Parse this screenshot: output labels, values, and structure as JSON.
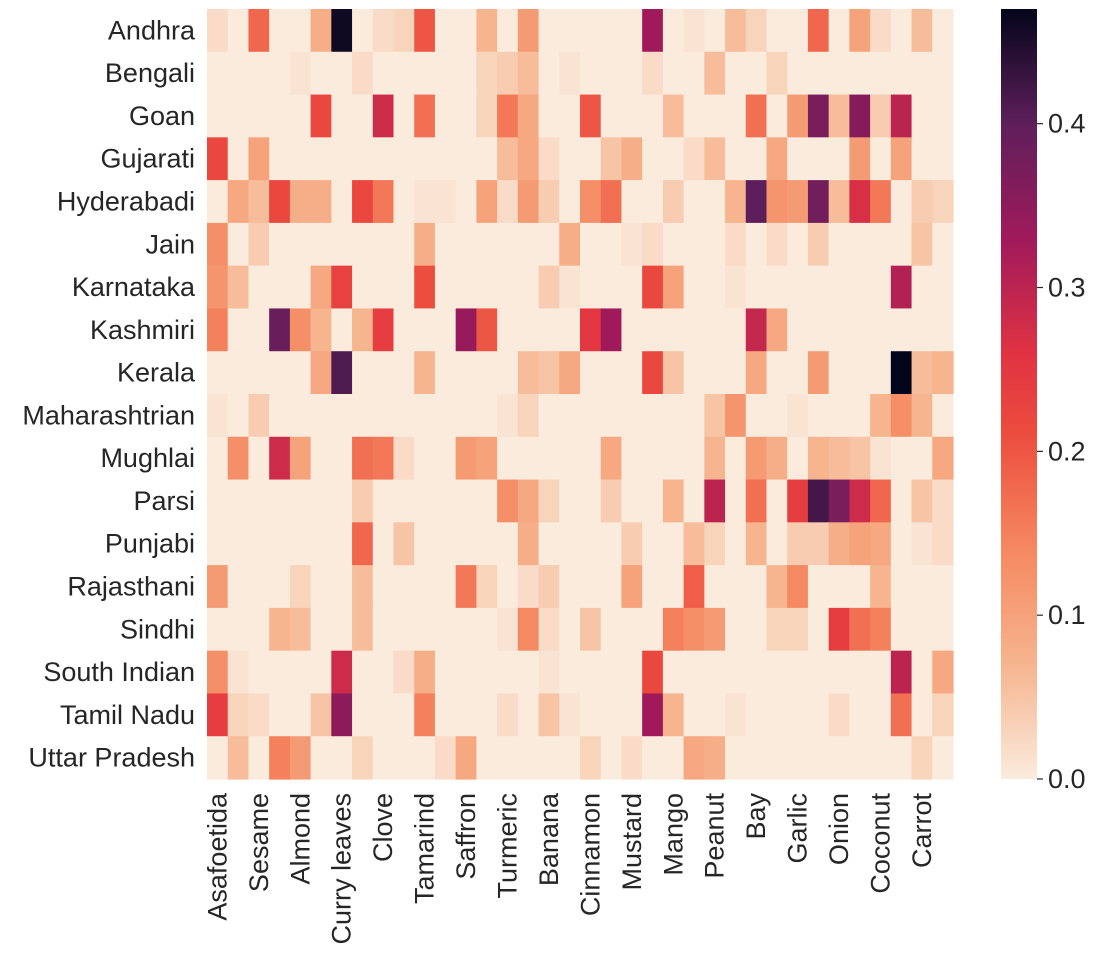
{
  "chart_data": {
    "type": "heatmap",
    "title": "",
    "xlabel": "",
    "ylabel": "",
    "rows": [
      "Andhra",
      "Bengali",
      "Goan",
      "Gujarati",
      "Hyderabadi",
      "Jain",
      "Karnataka",
      "Kashmiri",
      "Kerala",
      "Maharashtrian",
      "Mughlai",
      "Parsi",
      "Punjabi",
      "Rajasthani",
      "Sindhi",
      "South Indian",
      "Tamil Nadu",
      "Uttar Pradesh"
    ],
    "x_tick_labels": [
      "Asafoetida",
      "Sesame",
      "Almond",
      "Curry leaves",
      "Clove",
      "Tamarind",
      "Saffron",
      "Turmeric",
      "Banana",
      "Cinnamon",
      "Mustard",
      "Mango",
      "Peanut",
      "Bay",
      "Garlic",
      "Onion",
      "Coconut",
      "Carrot"
    ],
    "n_columns": 36,
    "values": [
      [
        0.02,
        0.0,
        0.18,
        0.0,
        0.0,
        0.08,
        0.46,
        0.0,
        0.02,
        0.03,
        0.2,
        0.0,
        0.0,
        0.07,
        0.0,
        0.11,
        0.0,
        0.0,
        0.0,
        0.0,
        0.0,
        0.33,
        0.0,
        0.01,
        0.0,
        0.06,
        0.03,
        0.0,
        0.0,
        0.18,
        0.0,
        0.1,
        0.02,
        0.0,
        0.06,
        0.0
      ],
      [
        0.0,
        0.0,
        0.0,
        0.0,
        0.01,
        0.0,
        0.0,
        0.02,
        0.0,
        0.0,
        0.0,
        0.0,
        0.0,
        0.03,
        0.04,
        0.06,
        0.0,
        0.01,
        0.0,
        0.0,
        0.0,
        0.02,
        0.0,
        0.0,
        0.06,
        0.0,
        0.0,
        0.03,
        0.0,
        0.0,
        0.0,
        0.0,
        0.0,
        0.0,
        0.0,
        0.0
      ],
      [
        0.0,
        0.0,
        0.0,
        0.0,
        0.0,
        0.22,
        0.0,
        0.0,
        0.28,
        0.0,
        0.17,
        0.0,
        0.0,
        0.03,
        0.16,
        0.09,
        0.0,
        0.0,
        0.2,
        0.0,
        0.0,
        0.0,
        0.06,
        0.0,
        0.0,
        0.0,
        0.17,
        0.0,
        0.11,
        0.37,
        0.06,
        0.36,
        0.04,
        0.3,
        0.0,
        0.0
      ],
      [
        0.22,
        0.0,
        0.1,
        0.0,
        0.0,
        0.0,
        0.0,
        0.0,
        0.0,
        0.0,
        0.0,
        0.0,
        0.0,
        0.0,
        0.06,
        0.09,
        0.02,
        0.0,
        0.0,
        0.05,
        0.08,
        0.0,
        0.0,
        0.02,
        0.06,
        0.0,
        0.0,
        0.09,
        0.0,
        0.0,
        0.0,
        0.11,
        0.0,
        0.1,
        0.0,
        0.0
      ],
      [
        0.0,
        0.09,
        0.06,
        0.22,
        0.08,
        0.08,
        0.0,
        0.22,
        0.16,
        0.0,
        0.01,
        0.01,
        0.0,
        0.1,
        0.02,
        0.11,
        0.04,
        0.0,
        0.13,
        0.17,
        0.0,
        0.0,
        0.04,
        0.0,
        0.0,
        0.07,
        0.4,
        0.12,
        0.11,
        0.38,
        0.06,
        0.27,
        0.16,
        0.0,
        0.04,
        0.03
      ],
      [
        0.13,
        0.0,
        0.04,
        0.0,
        0.0,
        0.0,
        0.0,
        0.0,
        0.0,
        0.0,
        0.08,
        0.0,
        0.0,
        0.0,
        0.0,
        0.0,
        0.0,
        0.08,
        0.0,
        0.0,
        0.01,
        0.02,
        0.0,
        0.0,
        0.0,
        0.02,
        0.0,
        0.02,
        0.0,
        0.04,
        0.0,
        0.0,
        0.0,
        0.0,
        0.05,
        0.0
      ],
      [
        0.12,
        0.06,
        0.0,
        0.0,
        0.0,
        0.09,
        0.23,
        0.0,
        0.0,
        0.0,
        0.21,
        0.0,
        0.0,
        0.0,
        0.0,
        0.0,
        0.04,
        0.01,
        0.0,
        0.0,
        0.0,
        0.22,
        0.1,
        0.0,
        0.0,
        0.01,
        0.0,
        0.0,
        0.0,
        0.0,
        0.0,
        0.0,
        0.0,
        0.31,
        0.0,
        0.0
      ],
      [
        0.15,
        0.0,
        0.0,
        0.39,
        0.13,
        0.07,
        0.0,
        0.07,
        0.24,
        0.0,
        0.0,
        0.0,
        0.34,
        0.2,
        0.0,
        0.0,
        0.0,
        0.0,
        0.25,
        0.33,
        0.0,
        0.0,
        0.0,
        0.0,
        0.0,
        0.0,
        0.29,
        0.09,
        0.0,
        0.0,
        0.0,
        0.0,
        0.0,
        0.0,
        0.0,
        0.0
      ],
      [
        0.0,
        0.0,
        0.0,
        0.0,
        0.0,
        0.09,
        0.41,
        0.0,
        0.0,
        0.0,
        0.07,
        0.0,
        0.0,
        0.0,
        0.0,
        0.06,
        0.05,
        0.09,
        0.0,
        0.0,
        0.0,
        0.22,
        0.05,
        0.0,
        0.0,
        0.0,
        0.09,
        0.0,
        0.0,
        0.11,
        0.0,
        0.0,
        0.0,
        0.47,
        0.06,
        0.07
      ],
      [
        0.01,
        0.0,
        0.04,
        0.0,
        0.0,
        0.0,
        0.0,
        0.0,
        0.0,
        0.0,
        0.0,
        0.0,
        0.0,
        0.0,
        0.01,
        0.03,
        0.0,
        0.0,
        0.0,
        0.0,
        0.0,
        0.0,
        0.0,
        0.0,
        0.05,
        0.12,
        0.0,
        0.0,
        0.01,
        0.0,
        0.0,
        0.0,
        0.07,
        0.13,
        0.07,
        0.0
      ],
      [
        0.0,
        0.13,
        0.0,
        0.28,
        0.1,
        0.0,
        0.0,
        0.17,
        0.16,
        0.02,
        0.0,
        0.0,
        0.11,
        0.1,
        0.0,
        0.0,
        0.0,
        0.0,
        0.0,
        0.09,
        0.0,
        0.0,
        0.0,
        0.0,
        0.07,
        0.0,
        0.11,
        0.08,
        0.0,
        0.07,
        0.06,
        0.05,
        0.01,
        0.0,
        0.0,
        0.09
      ],
      [
        0.0,
        0.0,
        0.0,
        0.0,
        0.0,
        0.0,
        0.0,
        0.04,
        0.0,
        0.0,
        0.0,
        0.0,
        0.0,
        0.0,
        0.13,
        0.09,
        0.03,
        0.0,
        0.0,
        0.04,
        0.0,
        0.0,
        0.07,
        0.0,
        0.3,
        0.0,
        0.17,
        0.0,
        0.24,
        0.42,
        0.37,
        0.28,
        0.18,
        0.0,
        0.05,
        0.02
      ],
      [
        0.0,
        0.0,
        0.0,
        0.0,
        0.0,
        0.0,
        0.0,
        0.18,
        0.0,
        0.05,
        0.0,
        0.0,
        0.0,
        0.0,
        0.0,
        0.08,
        0.0,
        0.0,
        0.0,
        0.0,
        0.04,
        0.0,
        0.0,
        0.06,
        0.03,
        0.0,
        0.07,
        0.0,
        0.04,
        0.04,
        0.08,
        0.1,
        0.09,
        0.0,
        0.01,
        0.02
      ],
      [
        0.11,
        0.0,
        0.0,
        0.0,
        0.03,
        0.0,
        0.0,
        0.06,
        0.0,
        0.0,
        0.0,
        0.0,
        0.16,
        0.03,
        0.0,
        0.02,
        0.04,
        0.0,
        0.0,
        0.0,
        0.1,
        0.0,
        0.0,
        0.19,
        0.0,
        0.0,
        0.0,
        0.07,
        0.14,
        0.0,
        0.0,
        0.0,
        0.07,
        0.0,
        0.0,
        0.0
      ],
      [
        0.0,
        0.0,
        0.0,
        0.07,
        0.06,
        0.0,
        0.0,
        0.06,
        0.0,
        0.0,
        0.0,
        0.0,
        0.0,
        0.0,
        0.01,
        0.14,
        0.02,
        0.0,
        0.05,
        0.0,
        0.0,
        0.0,
        0.15,
        0.13,
        0.11,
        0.0,
        0.0,
        0.03,
        0.03,
        0.0,
        0.24,
        0.17,
        0.15,
        0.0,
        0.0,
        0.0
      ],
      [
        0.13,
        0.01,
        0.0,
        0.0,
        0.0,
        0.0,
        0.28,
        0.0,
        0.0,
        0.02,
        0.08,
        0.0,
        0.0,
        0.0,
        0.0,
        0.0,
        0.01,
        0.0,
        0.0,
        0.0,
        0.0,
        0.22,
        0.0,
        0.0,
        0.0,
        0.0,
        0.0,
        0.0,
        0.0,
        0.0,
        0.0,
        0.0,
        0.0,
        0.3,
        0.0,
        0.09
      ],
      [
        0.24,
        0.03,
        0.02,
        0.0,
        0.0,
        0.05,
        0.35,
        0.0,
        0.0,
        0.0,
        0.15,
        0.0,
        0.0,
        0.0,
        0.02,
        0.0,
        0.05,
        0.01,
        0.0,
        0.0,
        0.0,
        0.33,
        0.07,
        0.0,
        0.0,
        0.01,
        0.0,
        0.0,
        0.0,
        0.0,
        0.02,
        0.0,
        0.0,
        0.17,
        0.0,
        0.03
      ],
      [
        0.0,
        0.06,
        0.0,
        0.15,
        0.11,
        0.0,
        0.0,
        0.03,
        0.0,
        0.0,
        0.0,
        0.02,
        0.09,
        0.0,
        0.0,
        0.0,
        0.0,
        0.0,
        0.03,
        0.0,
        0.02,
        0.0,
        0.0,
        0.09,
        0.08,
        0.0,
        0.0,
        0.0,
        0.0,
        0.0,
        0.0,
        0.0,
        0.0,
        0.0,
        0.03,
        0.0
      ]
    ],
    "colorbar": {
      "min": 0.0,
      "max": 0.47,
      "ticks": [
        "0.0",
        "0.1",
        "0.2",
        "0.3",
        "0.4"
      ],
      "tick_values": [
        0.0,
        0.1,
        0.2,
        0.3,
        0.4
      ],
      "colormap": "rocket_r"
    },
    "grid": false,
    "legend": "colorbar-right"
  }
}
